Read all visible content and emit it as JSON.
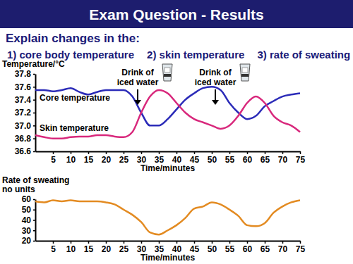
{
  "slide": {
    "title": "Exam Question - Results",
    "intro": "Explain changes in the:",
    "items": [
      "1) core body temperature",
      "2) skin temperature",
      "3) rate of sweating"
    ]
  },
  "chart_data": [
    {
      "type": "line",
      "y_label": [
        "Temperature/°C"
      ],
      "x_label": "Time/minutes",
      "x": [
        0,
        2.5,
        5,
        7.5,
        10,
        12.5,
        15,
        17.5,
        20,
        22.5,
        25,
        27.5,
        30,
        32.5,
        35,
        37.5,
        40,
        42.5,
        45,
        47.5,
        50,
        52.5,
        55,
        57.5,
        60,
        62.5,
        65,
        67.5,
        70,
        72.5,
        75
      ],
      "xlim": [
        0,
        75
      ],
      "xticks": [
        5,
        10,
        15,
        20,
        25,
        30,
        35,
        40,
        45,
        50,
        55,
        60,
        65,
        70,
        75
      ],
      "ylim": [
        36.6,
        37.8
      ],
      "yticks": [
        36.6,
        36.8,
        {
          "value": 37,
          "label": "37.0"
        },
        37.2,
        37.4,
        37.6,
        37.8
      ],
      "series": [
        {
          "name": "Core temperature",
          "color": "#2b2bb8",
          "values": [
            37.55,
            37.55,
            37.53,
            37.55,
            37.58,
            37.52,
            37.48,
            37.52,
            37.55,
            37.55,
            37.55,
            37.45,
            37.2,
            37.0,
            37.0,
            37.1,
            37.25,
            37.4,
            37.5,
            37.58,
            37.6,
            37.55,
            37.35,
            37.2,
            37.1,
            37.15,
            37.3,
            37.38,
            37.45,
            37.48,
            37.5
          ]
        },
        {
          "name": "Skin temperature",
          "color": "#d8287c",
          "values": [
            36.85,
            36.82,
            36.8,
            36.8,
            36.82,
            36.83,
            36.83,
            36.85,
            36.85,
            36.83,
            36.82,
            36.9,
            37.2,
            37.45,
            37.55,
            37.5,
            37.35,
            37.2,
            37.1,
            37.05,
            37.0,
            36.95,
            37.0,
            37.15,
            37.35,
            37.45,
            37.35,
            37.15,
            37.05,
            37.0,
            36.9
          ]
        }
      ],
      "annotations": [
        {
          "lines": [
            "Drink of",
            "iced water"
          ],
          "x": 29
        },
        {
          "lines": [
            "Drink of",
            "iced water"
          ],
          "x": 51
        }
      ]
    },
    {
      "type": "line",
      "y_label": [
        "Rate of sweating",
        "no units"
      ],
      "x_label": "Time/minutes",
      "x": [
        0,
        2.5,
        5,
        7.5,
        10,
        12.5,
        15,
        17.5,
        20,
        22.5,
        25,
        27.5,
        30,
        32.5,
        35,
        37.5,
        40,
        42.5,
        45,
        47.5,
        50,
        52.5,
        55,
        57.5,
        60,
        62.5,
        65,
        67.5,
        70,
        72.5,
        75
      ],
      "xlim": [
        0,
        75
      ],
      "xticks": [
        5,
        10,
        15,
        20,
        25,
        30,
        35,
        40,
        45,
        50,
        55,
        60,
        65,
        70,
        75
      ],
      "ylim": [
        20,
        60
      ],
      "yticks": [
        20,
        30,
        40,
        50,
        60
      ],
      "color": "#e38b22",
      "values": [
        58,
        57,
        59,
        58,
        59,
        58,
        58,
        58,
        57,
        55,
        50,
        45,
        38,
        28,
        26,
        30,
        35,
        42,
        51,
        53,
        57,
        55,
        50,
        44,
        35,
        34,
        37,
        47,
        53,
        57,
        59
      ]
    }
  ]
}
